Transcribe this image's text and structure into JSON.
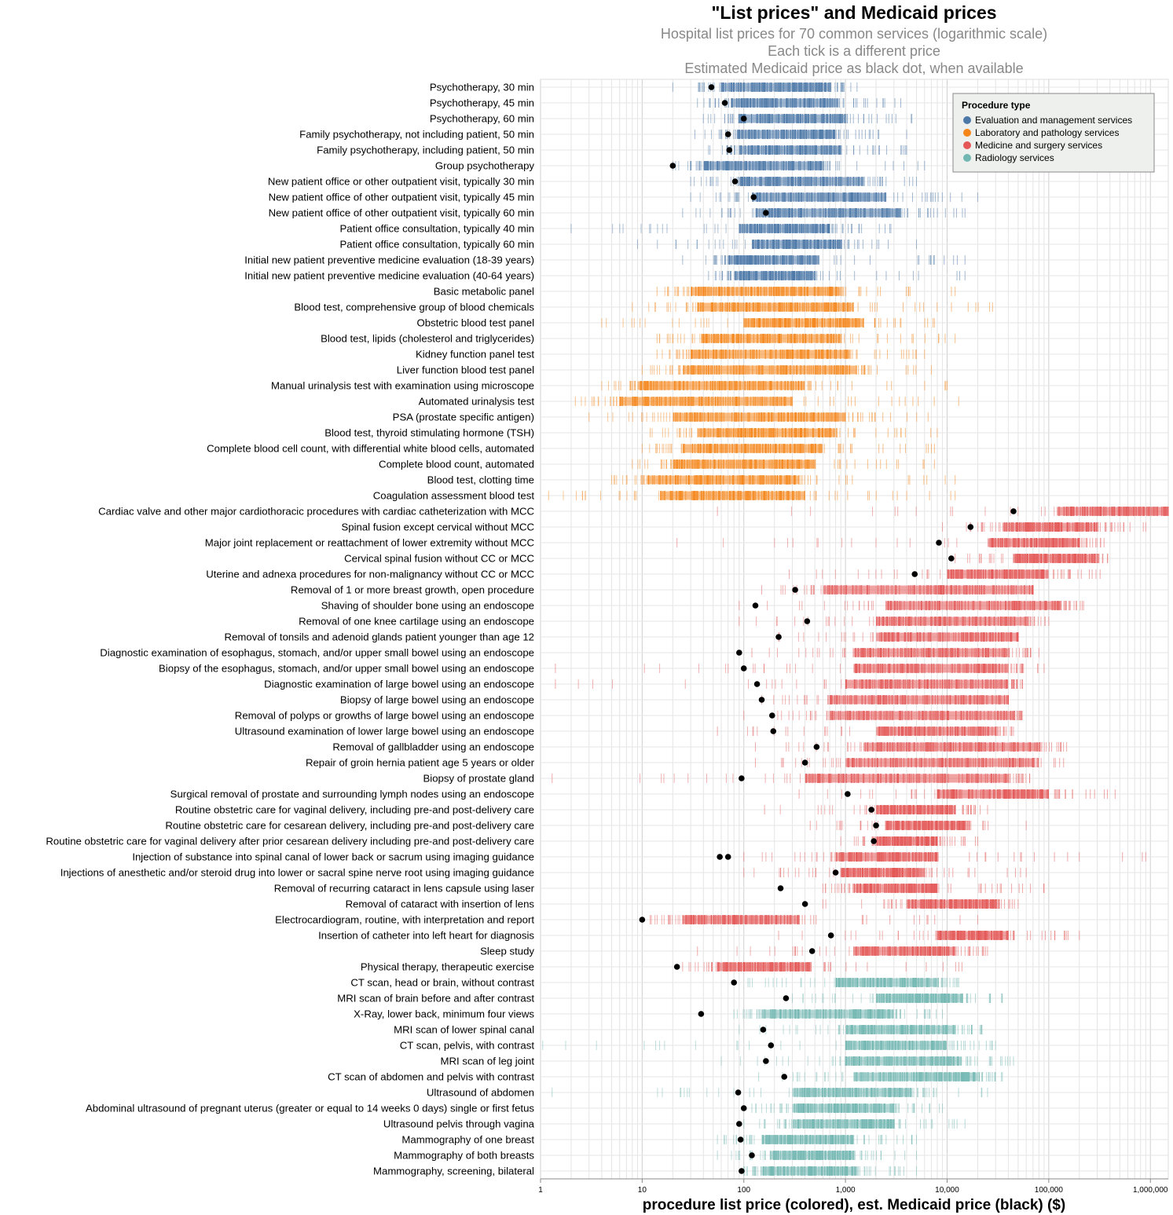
{
  "chart_data": {
    "type": "strip",
    "title": "\"List prices\" and Medicaid prices",
    "subtitle": [
      "Hospital list prices for 70 common services (logarithmic scale)",
      "Each tick is a different price",
      "Estimated Medicaid price as black dot, when available"
    ],
    "xlabel": "procedure list price (colored), est. Medicaid price (black) ($)",
    "x_scale": "log",
    "xlim": [
      1,
      1500000
    ],
    "x_ticks": [
      1,
      10,
      100,
      1000,
      10000,
      100000,
      1000000
    ],
    "x_tick_labels": [
      "1",
      "10",
      "100",
      "1,000",
      "10,000",
      "100,000",
      "1,000,000"
    ],
    "grid": true,
    "legend": {
      "title": "Procedure type",
      "placement": "top-right",
      "entries": [
        {
          "name": "Evaluation and management services",
          "color": "#4c78a8"
        },
        {
          "name": "Laboratory and pathology services",
          "color": "#f58518"
        },
        {
          "name": "Medicine and surgery services",
          "color": "#e45756"
        },
        {
          "name": "Radiology services",
          "color": "#72b7b2"
        }
      ]
    },
    "procedures": [
      {
        "name": "Psychotherapy, 30 min",
        "type": 0,
        "lo": 20,
        "core": [
          60,
          700
        ],
        "hi": 1300,
        "medicaid": [
          48
        ]
      },
      {
        "name": "Psychotherapy, 45 min",
        "type": 0,
        "lo": 35,
        "core": [
          75,
          850
        ],
        "hi": 3500,
        "medicaid": [
          65
        ]
      },
      {
        "name": "Psychotherapy, 60 min",
        "type": 0,
        "lo": 40,
        "core": [
          90,
          1000
        ],
        "hi": 4500,
        "medicaid": [
          100
        ]
      },
      {
        "name": "Family psychotherapy, not including patient, 50 min",
        "type": 0,
        "lo": 33,
        "core": [
          85,
          800
        ],
        "hi": 4000,
        "medicaid": [
          70
        ]
      },
      {
        "name": "Family psychotherapy, including patient, 50 min",
        "type": 0,
        "lo": 45,
        "core": [
          90,
          900
        ],
        "hi": 4000,
        "medicaid": [
          72
        ]
      },
      {
        "name": "Group psychotherapy",
        "type": 0,
        "lo": 20,
        "core": [
          40,
          600
        ],
        "hi": 6000,
        "medicaid": [
          20
        ]
      },
      {
        "name": "New patient office or other outpatient visit, typically 30 min",
        "type": 0,
        "lo": 30,
        "core": [
          90,
          1500
        ],
        "hi": 5000,
        "medicaid": [
          82
        ]
      },
      {
        "name": "New patient office of other outpatient visit, typically 45 min",
        "type": 0,
        "lo": 30,
        "core": [
          120,
          2500
        ],
        "hi": 20000,
        "medicaid": [
          125
        ]
      },
      {
        "name": "New patient office of other outpatient visit, typically 60 min",
        "type": 0,
        "lo": 25,
        "core": [
          130,
          3500
        ],
        "hi": 15000,
        "medicaid": [
          165
        ]
      },
      {
        "name": "Patient office consultation, typically 40 min",
        "type": 0,
        "lo": 2,
        "core": [
          90,
          700
        ],
        "hi": 2800,
        "medicaid": null
      },
      {
        "name": "Patient office consultation, typically 60 min",
        "type": 0,
        "lo": 9,
        "core": [
          120,
          900
        ],
        "hi": 5000,
        "medicaid": null
      },
      {
        "name": "Initial new patient preventive medicine evaluation (18-39 years)",
        "type": 0,
        "lo": 25,
        "core": [
          70,
          550
        ],
        "hi": 15000,
        "medicaid": null
      },
      {
        "name": "Initial new patient preventive medicine evaluation (40-64 years)",
        "type": 0,
        "lo": 45,
        "core": [
          80,
          500
        ],
        "hi": 15000,
        "medicaid": null
      },
      {
        "name": "Basic metabolic panel",
        "type": 1,
        "lo": 14,
        "core": [
          30,
          900
        ],
        "hi": 12000,
        "medicaid": null
      },
      {
        "name": "Blood test, comprehensive group of blood chemicals",
        "type": 1,
        "lo": 8,
        "core": [
          35,
          1200
        ],
        "hi": 28000,
        "medicaid": null
      },
      {
        "name": "Obstetric blood test panel",
        "type": 1,
        "lo": 4,
        "core": [
          100,
          1500
        ],
        "hi": 7500,
        "medicaid": null
      },
      {
        "name": "Blood test, lipids (cholesterol and triglycerides)",
        "type": 1,
        "lo": 14,
        "core": [
          38,
          900
        ],
        "hi": 12000,
        "medicaid": null
      },
      {
        "name": "Kidney function panel test",
        "type": 1,
        "lo": 14,
        "core": [
          30,
          1100
        ],
        "hi": 6000,
        "medicaid": null
      },
      {
        "name": "Liver function blood test panel",
        "type": 1,
        "lo": 10,
        "core": [
          25,
          1300
        ],
        "hi": 7000,
        "medicaid": null
      },
      {
        "name": "Manual urinalysis test with examination using microscope",
        "type": 1,
        "lo": 4,
        "core": [
          9,
          400
        ],
        "hi": 10000,
        "medicaid": null
      },
      {
        "name": "Automated urinalysis test",
        "type": 1,
        "lo": 2.2,
        "core": [
          6,
          300
        ],
        "hi": 13000,
        "medicaid": null
      },
      {
        "name": "PSA (prostate specific antigen)",
        "type": 1,
        "lo": 3,
        "core": [
          20,
          1000
        ],
        "hi": 6500,
        "medicaid": null
      },
      {
        "name": "Blood test, thyroid stimulating hormone (TSH)",
        "type": 1,
        "lo": 12,
        "core": [
          35,
          800
        ],
        "hi": 8000,
        "medicaid": null
      },
      {
        "name": "Complete blood cell count, with differential white blood cells, automated",
        "type": 1,
        "lo": 10,
        "core": [
          25,
          600
        ],
        "hi": 7500,
        "medicaid": null
      },
      {
        "name": "Complete blood count, automated",
        "type": 1,
        "lo": 8,
        "core": [
          20,
          500
        ],
        "hi": 7500,
        "medicaid": null
      },
      {
        "name": "Blood test, clotting time",
        "type": 1,
        "lo": 5,
        "core": [
          11,
          350
        ],
        "hi": 12000,
        "medicaid": null
      },
      {
        "name": "Coagulation assessment blood test",
        "type": 1,
        "lo": 1.2,
        "core": [
          15,
          400
        ],
        "hi": 12000,
        "medicaid": null
      },
      {
        "name": "Cardiac valve and other major cardiothoracic procedures with cardiac catheterization with MCC",
        "type": 2,
        "lo": 55,
        "core": [
          120000,
          1500000
        ],
        "hi": 1500000,
        "medicaid": [
          45000
        ]
      },
      {
        "name": "Spinal fusion except cervical without MCC",
        "type": 2,
        "lo": 9000,
        "core": [
          35000,
          300000
        ],
        "hi": 900000,
        "medicaid": [
          17000
        ]
      },
      {
        "name": "Major joint replacement or reattachment of lower extremity without MCC",
        "type": 2,
        "lo": 22,
        "core": [
          25000,
          200000
        ],
        "hi": 350000,
        "medicaid": [
          8300
        ]
      },
      {
        "name": "Cervical spinal fusion without CC or MCC",
        "type": 2,
        "lo": 12000,
        "core": [
          45000,
          280000
        ],
        "hi": 380000,
        "medicaid": [
          11000
        ]
      },
      {
        "name": "Uterine and adnexa procedures for non-malignancy without CC or MCC",
        "type": 2,
        "lo": 280,
        "core": [
          10000,
          100000
        ],
        "hi": 320000,
        "medicaid": [
          4800
        ]
      },
      {
        "name": "Removal of 1 or more breast growth, open procedure",
        "type": 2,
        "lo": 150,
        "core": [
          600,
          70000
        ],
        "hi": 70000,
        "medicaid": [
          320
        ]
      },
      {
        "name": "Shaving of shoulder bone using an endoscope",
        "type": 2,
        "lo": 90,
        "core": [
          2500,
          130000
        ],
        "hi": 220000,
        "medicaid": [
          130
        ]
      },
      {
        "name": "Removal of one knee cartilage using an endoscope",
        "type": 2,
        "lo": 90,
        "core": [
          2000,
          60000
        ],
        "hi": 100000,
        "medicaid": [
          420
        ]
      },
      {
        "name": "Removal of tonsils and adenoid glands patient younger than age 12",
        "type": 2,
        "lo": 220,
        "core": [
          2000,
          50000
        ],
        "hi": 50000,
        "medicaid": [
          220
        ]
      },
      {
        "name": "Diagnostic examination of esophagus, stomach, and/or upper small bowel using an endoscope",
        "type": 2,
        "lo": 120,
        "core": [
          1200,
          40000
        ],
        "hi": 80000,
        "medicaid": [
          90
        ]
      },
      {
        "name": "Biopsy of the esophagus, stomach, and/or upper small bowel using an endoscope",
        "type": 2,
        "lo": 1.4,
        "core": [
          1200,
          40000
        ],
        "hi": 90000,
        "medicaid": [
          100
        ]
      },
      {
        "name": "Diagnostic examination of large bowel using an endoscope",
        "type": 2,
        "lo": 1.4,
        "core": [
          1000,
          40000
        ],
        "hi": 55000,
        "medicaid": [
          135
        ]
      },
      {
        "name": "Biopsy of large bowel using an endoscope",
        "type": 2,
        "lo": 150,
        "core": [
          700,
          40000
        ],
        "hi": 40000,
        "medicaid": [
          150
        ]
      },
      {
        "name": "Removal of polyps or growths of large bowel using an endoscope",
        "type": 2,
        "lo": 100,
        "core": [
          700,
          45000
        ],
        "hi": 55000,
        "medicaid": [
          190
        ]
      },
      {
        "name": "Ultrasound examination of lower large bowel using an endoscope",
        "type": 2,
        "lo": 55,
        "core": [
          2000,
          30000
        ],
        "hi": 45000,
        "medicaid": [
          195
        ]
      },
      {
        "name": "Removal of gallbladder using an endoscope",
        "type": 2,
        "lo": 130,
        "core": [
          1500,
          80000
        ],
        "hi": 150000,
        "medicaid": [
          520
        ]
      },
      {
        "name": "Repair of groin hernia patient age 5 years or older",
        "type": 2,
        "lo": 130,
        "core": [
          1000,
          70000
        ],
        "hi": 140000,
        "medicaid": [
          400
        ]
      },
      {
        "name": "Biopsy of prostate gland",
        "type": 2,
        "lo": 1.3,
        "core": [
          400,
          40000
        ],
        "hi": 65000,
        "medicaid": [
          95
        ]
      },
      {
        "name": "Surgical removal of prostate and surrounding lymph nodes using an endoscope",
        "type": 2,
        "lo": 350,
        "core": [
          8000,
          100000
        ],
        "hi": 450000,
        "medicaid": [
          1050
        ]
      },
      {
        "name": "Routine obstetric care for vaginal delivery, including pre-and post-delivery care",
        "type": 2,
        "lo": 160,
        "core": [
          2000,
          12000
        ],
        "hi": 25000,
        "medicaid": [
          1800
        ]
      },
      {
        "name": "Routine obstetric care for cesarean delivery, including pre-and post-delivery care",
        "type": 2,
        "lo": 450,
        "core": [
          2500,
          15000
        ],
        "hi": 60000,
        "medicaid": [
          2000
        ]
      },
      {
        "name": "Routine obstetric care for vaginal delivery after prior cesarean delivery including pre-and post-delivery care",
        "type": 2,
        "lo": 900,
        "core": [
          2000,
          8000
        ],
        "hi": 20000,
        "medicaid": [
          1900
        ]
      },
      {
        "name": "Injection of substance into spinal canal of lower back or sacrum using imaging guidance",
        "type": 2,
        "lo": 100,
        "core": [
          800,
          8000
        ],
        "hi": 900000,
        "medicaid": [
          58,
          70
        ]
      },
      {
        "name": "Injections of anesthetic and/or steroid drug into lower or sacral spine nerve root using imaging guidance",
        "type": 2,
        "lo": 100,
        "core": [
          900,
          6000
        ],
        "hi": 60000,
        "medicaid": [
          800
        ]
      },
      {
        "name": "Removal of recurring cataract in lens capsule using laser",
        "type": 2,
        "lo": 600,
        "core": [
          1200,
          8000
        ],
        "hi": 90000,
        "medicaid": [
          230
        ]
      },
      {
        "name": "Removal of cataract with insertion of lens",
        "type": 2,
        "lo": 600,
        "core": [
          4000,
          30000
        ],
        "hi": 50000,
        "medicaid": [
          400
        ]
      },
      {
        "name": "Electrocardiogram, routine, with interpretation and report",
        "type": 2,
        "lo": 12,
        "core": [
          25,
          350
        ],
        "hi": 20000,
        "medicaid": [
          10
        ]
      },
      {
        "name": "Insertion of catheter into left heart for diagnosis",
        "type": 2,
        "lo": 220,
        "core": [
          8000,
          40000
        ],
        "hi": 200000,
        "medicaid": [
          720
        ]
      },
      {
        "name": "Sleep study",
        "type": 2,
        "lo": 35,
        "core": [
          1200,
          12000
        ],
        "hi": 25000,
        "medicaid": [
          470
        ]
      },
      {
        "name": "Physical therapy, therapeutic exercise",
        "type": 2,
        "lo": 25,
        "core": [
          55,
          450
        ],
        "hi": 14000,
        "medicaid": [
          22
        ]
      },
      {
        "name": "CT scan, head or brain, without contrast",
        "type": 3,
        "lo": 110,
        "core": [
          800,
          8000
        ],
        "hi": 13000,
        "medicaid": [
          80
        ]
      },
      {
        "name": "MRI scan of brain before and after contrast",
        "type": 3,
        "lo": 300,
        "core": [
          2000,
          14000
        ],
        "hi": 35000,
        "medicaid": [
          260
        ]
      },
      {
        "name": "X-Ray, lower back, minimum four views",
        "type": 3,
        "lo": 80,
        "core": [
          150,
          3000
        ],
        "hi": 9000,
        "medicaid": [
          38
        ]
      },
      {
        "name": "MRI scan of lower spinal canal",
        "type": 3,
        "lo": 90,
        "core": [
          1000,
          12000
        ],
        "hi": 22000,
        "medicaid": [
          155
        ]
      },
      {
        "name": "CT scan, pelvis, with contrast",
        "type": 3,
        "lo": 1.05,
        "core": [
          1000,
          10000
        ],
        "hi": 30000,
        "medicaid": [
          185
        ]
      },
      {
        "name": "MRI scan of leg joint",
        "type": 3,
        "lo": 60,
        "core": [
          1000,
          14000
        ],
        "hi": 45000,
        "medicaid": [
          165
        ]
      },
      {
        "name": "CT scan of abdomen and pelvis with contrast",
        "type": 3,
        "lo": 140,
        "core": [
          1200,
          20000
        ],
        "hi": 35000,
        "medicaid": [
          250
        ]
      },
      {
        "name": "Ultrasound of abdomen",
        "type": 3,
        "lo": 1.3,
        "core": [
          300,
          4500
        ],
        "hi": 25000,
        "medicaid": [
          88
        ]
      },
      {
        "name": "Abdominal ultrasound of pregnant uterus (greater or equal to 14 weeks 0 days) single or first fetus",
        "type": 3,
        "lo": 120,
        "core": [
          300,
          3000
        ],
        "hi": 9000,
        "medicaid": [
          100
        ]
      },
      {
        "name": "Ultrasound pelvis through vagina",
        "type": 3,
        "lo": 100,
        "core": [
          300,
          3000
        ],
        "hi": 15000,
        "medicaid": [
          90
        ]
      },
      {
        "name": "Mammography of one breast",
        "type": 3,
        "lo": 55,
        "core": [
          150,
          1200
        ],
        "hi": 5000,
        "medicaid": [
          93
        ]
      },
      {
        "name": "Mammography of both breasts",
        "type": 3,
        "lo": 55,
        "core": [
          180,
          1200
        ],
        "hi": 5000,
        "medicaid": [
          120
        ]
      },
      {
        "name": "Mammography, screening, bilateral",
        "type": 3,
        "lo": 100,
        "core": [
          150,
          1300
        ],
        "hi": 5000,
        "medicaid": [
          95
        ]
      }
    ]
  }
}
